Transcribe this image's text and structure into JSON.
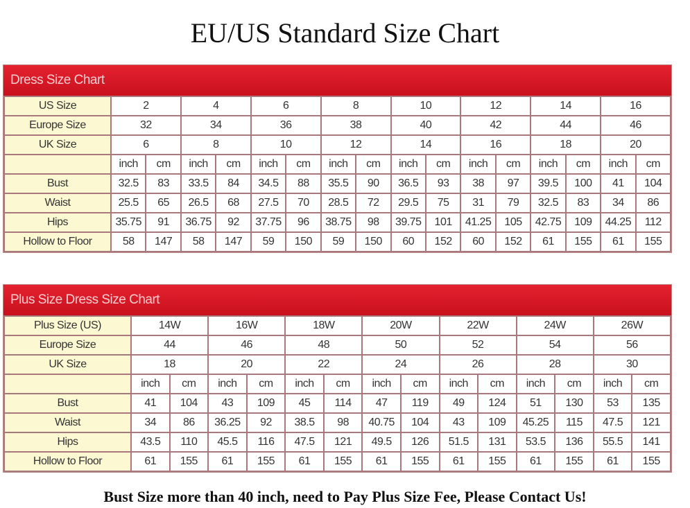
{
  "title": "EU/US Standard Size Chart",
  "footer": "Bust Size more than 40 inch, need to Pay Plus Size Fee, Please Contact Us!",
  "colors": {
    "header_red": "#d4151f",
    "label_bg": "#fbf8d2",
    "border": "#a8787c"
  },
  "tables": [
    {
      "heading": "Dress Size Chart",
      "size_rows": [
        {
          "label": "US Size",
          "values": [
            "2",
            "4",
            "6",
            "8",
            "10",
            "12",
            "14",
            "16"
          ]
        },
        {
          "label": "Europe Size",
          "values": [
            "32",
            "34",
            "36",
            "38",
            "40",
            "42",
            "44",
            "46"
          ]
        },
        {
          "label": "UK Size",
          "values": [
            "6",
            "8",
            "10",
            "12",
            "14",
            "16",
            "18",
            "20"
          ]
        }
      ],
      "unit_inch": "inch",
      "unit_cm": "cm",
      "measure_rows": [
        {
          "label": "Bust",
          "values": [
            "32.5",
            "83",
            "33.5",
            "84",
            "34.5",
            "88",
            "35.5",
            "90",
            "36.5",
            "93",
            "38",
            "97",
            "39.5",
            "100",
            "41",
            "104"
          ]
        },
        {
          "label": "Waist",
          "values": [
            "25.5",
            "65",
            "26.5",
            "68",
            "27.5",
            "70",
            "28.5",
            "72",
            "29.5",
            "75",
            "31",
            "79",
            "32.5",
            "83",
            "34",
            "86"
          ]
        },
        {
          "label": "Hips",
          "values": [
            "35.75",
            "91",
            "36.75",
            "92",
            "37.75",
            "96",
            "38.75",
            "98",
            "39.75",
            "101",
            "41.25",
            "105",
            "42.75",
            "109",
            "44.25",
            "112"
          ]
        },
        {
          "label": "Hollow to Floor",
          "values": [
            "58",
            "147",
            "58",
            "147",
            "59",
            "150",
            "59",
            "150",
            "60",
            "152",
            "60",
            "152",
            "61",
            "155",
            "61",
            "155"
          ]
        }
      ]
    },
    {
      "heading": "Plus Size Dress Size Chart",
      "size_rows": [
        {
          "label": "Plus Size (US)",
          "values": [
            "14W",
            "16W",
            "18W",
            "20W",
            "22W",
            "24W",
            "26W"
          ]
        },
        {
          "label": "Europe Size",
          "values": [
            "44",
            "46",
            "48",
            "50",
            "52",
            "54",
            "56"
          ]
        },
        {
          "label": "UK Size",
          "values": [
            "18",
            "20",
            "22",
            "24",
            "26",
            "28",
            "30"
          ]
        }
      ],
      "unit_inch": "inch",
      "unit_cm": "cm",
      "measure_rows": [
        {
          "label": "Bust",
          "values": [
            "41",
            "104",
            "43",
            "109",
            "45",
            "114",
            "47",
            "119",
            "49",
            "124",
            "51",
            "130",
            "53",
            "135"
          ]
        },
        {
          "label": "Waist",
          "values": [
            "34",
            "86",
            "36.25",
            "92",
            "38.5",
            "98",
            "40.75",
            "104",
            "43",
            "109",
            "45.25",
            "115",
            "47.5",
            "121"
          ]
        },
        {
          "label": "Hips",
          "values": [
            "43.5",
            "110",
            "45.5",
            "116",
            "47.5",
            "121",
            "49.5",
            "126",
            "51.5",
            "131",
            "53.5",
            "136",
            "55.5",
            "141"
          ]
        },
        {
          "label": "Hollow to Floor",
          "values": [
            "61",
            "155",
            "61",
            "155",
            "61",
            "155",
            "61",
            "155",
            "61",
            "155",
            "61",
            "155",
            "61",
            "155"
          ]
        }
      ]
    }
  ]
}
